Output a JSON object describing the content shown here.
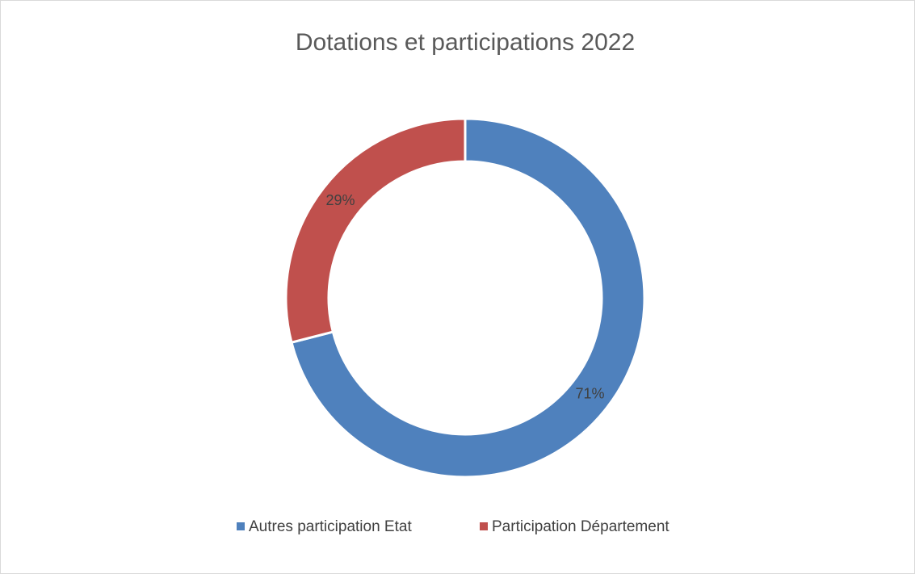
{
  "chart_data": {
    "type": "donut",
    "title": "Dotations et participations 2022",
    "categories": [
      "Autres participation Etat",
      "Participation Département"
    ],
    "values": [
      71,
      29
    ],
    "value_labels": [
      "71%",
      "29%"
    ],
    "colors": [
      "#4f81bd",
      "#c0504d"
    ],
    "legend": "bottom"
  }
}
